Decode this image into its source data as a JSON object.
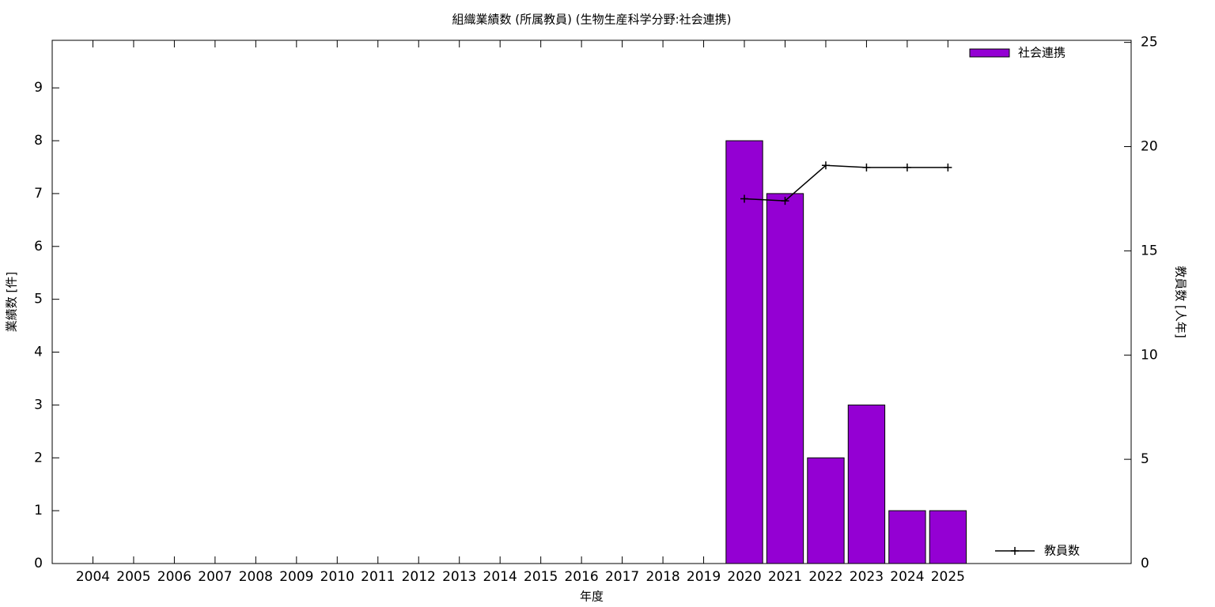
{
  "chart_data": {
    "type": "bar",
    "title": "組織業績数 (所属教員) (生物生産科学分野:社会連携)",
    "x_label": "年度",
    "y_label": "業績数 [件]",
    "y2_label": "教員数 [人年]",
    "categories": [
      "2004",
      "2005",
      "2006",
      "2007",
      "2008",
      "2009",
      "2010",
      "2011",
      "2012",
      "2013",
      "2014",
      "2015",
      "2016",
      "2017",
      "2018",
      "2019",
      "2020",
      "2021",
      "2022",
      "2023",
      "2024",
      "2025"
    ],
    "series": [
      {
        "name": "社会連携",
        "type": "bar",
        "color": "#9400d3",
        "values": [
          0,
          0,
          0,
          0,
          0,
          0,
          0,
          0,
          0,
          0,
          0,
          0,
          0,
          0,
          0,
          0,
          8,
          7,
          2,
          3,
          1,
          1
        ]
      },
      {
        "name": "教員数",
        "type": "line",
        "color": "#000000",
        "axis": "y2",
        "values": [
          null,
          null,
          null,
          null,
          null,
          null,
          null,
          null,
          null,
          null,
          null,
          null,
          null,
          null,
          null,
          null,
          17.5,
          17.4,
          19.1,
          19.0,
          19.0,
          19.0
        ]
      }
    ],
    "ylim": [
      0,
      9.9
    ],
    "yticks": [
      0,
      1,
      2,
      3,
      4,
      5,
      6,
      7,
      8,
      9
    ],
    "y2lim": [
      0,
      25.1
    ],
    "y2ticks": [
      0,
      5,
      10,
      15,
      20,
      25
    ],
    "grid": false
  }
}
